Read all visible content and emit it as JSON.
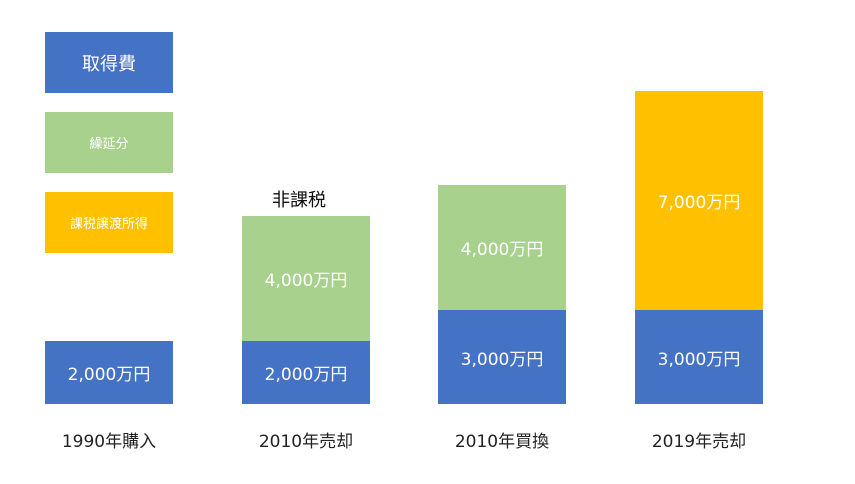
{
  "colors": {
    "acquisition": "#4472C4",
    "deferred": "#A9D18E",
    "taxable": "#FFC000"
  },
  "legend": {
    "acquisition": "取得費",
    "deferred": "繰延分",
    "taxable": "課税譲渡所得"
  },
  "chart_data": {
    "type": "bar",
    "stacked": true,
    "categories": [
      "1990年購入",
      "2010年売却",
      "2010年買換",
      "2019年売却"
    ],
    "unit": "万円",
    "series": [
      {
        "name": "取得費",
        "values": [
          2000,
          2000,
          3000,
          3000
        ],
        "labels": [
          "2,000万円",
          "2,000万円",
          "3,000万円",
          "3,000万円"
        ]
      },
      {
        "name": "繰延分",
        "values": [
          0,
          4000,
          4000,
          0
        ],
        "labels": [
          "",
          "4,000万円",
          "4,000万円",
          ""
        ]
      },
      {
        "name": "課税譲渡所得",
        "values": [
          0,
          0,
          0,
          7000
        ],
        "labels": [
          "",
          "",
          "",
          "7,000万円"
        ]
      }
    ],
    "annotations": [
      {
        "category": "2010年売却",
        "text": "非課税"
      }
    ]
  }
}
